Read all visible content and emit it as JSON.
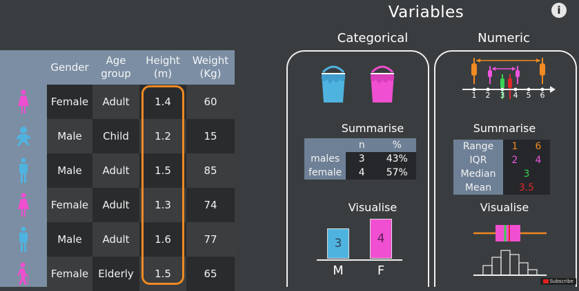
{
  "title": "Variables",
  "table": {
    "headers": {
      "gender": "Gender",
      "age_group_line1": "Age",
      "age_group_line2": "group",
      "height_line1": "Height",
      "height_line2": "(m)",
      "weight_line1": "Weight",
      "weight_line2": "(Kg)"
    },
    "rows": [
      {
        "icon": "female-person-icon",
        "gender": "Female",
        "age_group": "Adult",
        "height": "1.4",
        "weight": "60"
      },
      {
        "icon": "baby-icon",
        "gender": "Male",
        "age_group": "Child",
        "height": "1.2",
        "weight": "15"
      },
      {
        "icon": "male-person-icon",
        "gender": "Male",
        "age_group": "Adult",
        "height": "1.5",
        "weight": "85"
      },
      {
        "icon": "female-person-icon",
        "gender": "Female",
        "age_group": "Adult",
        "height": "1.3",
        "weight": "74"
      },
      {
        "icon": "male-person-icon",
        "gender": "Male",
        "age_group": "Adult",
        "height": "1.6",
        "weight": "77"
      },
      {
        "icon": "elderly-person-icon",
        "gender": "Female",
        "age_group": "Elderly",
        "height": "1.5",
        "weight": "65"
      }
    ]
  },
  "categorical": {
    "title": "Categorical",
    "summarise_label": "Summarise",
    "summary_table": {
      "headers": [
        "",
        "n",
        "%"
      ],
      "rows": [
        {
          "label": "males",
          "n": "3",
          "pct": "43%"
        },
        {
          "label": "female",
          "n": "4",
          "pct": "57%"
        }
      ]
    },
    "visualise_label": "Visualise",
    "bars": [
      {
        "label": "M",
        "value": "3",
        "color": "#4fb3e0"
      },
      {
        "label": "F",
        "value": "4",
        "color": "#ef4fd0"
      }
    ]
  },
  "numeric": {
    "title": "Numeric",
    "number_line_ticks": [
      "1",
      "2",
      "3",
      "4",
      "5",
      "6"
    ],
    "summarise_label": "Summarise",
    "summary_table": [
      {
        "label": "Range",
        "values": [
          "1",
          "6"
        ],
        "colors": [
          "#f08a23",
          "#f08a23"
        ]
      },
      {
        "label": "IQR",
        "values": [
          "2",
          "4"
        ],
        "colors": [
          "#ee55dd",
          "#ee55dd"
        ]
      },
      {
        "label": "Median",
        "values": [
          "3"
        ],
        "colors": [
          "#39d353"
        ]
      },
      {
        "label": "Mean",
        "values": [
          "3.5"
        ],
        "colors": [
          "#e0282a"
        ]
      }
    ],
    "visualise_label": "Visualise"
  },
  "colors": {
    "accent_orange": "#f08a23",
    "pink": "#ef4fd0",
    "blue": "#4fb3e0",
    "green": "#39d353",
    "red": "#e0282a"
  },
  "badge": {
    "subscribe": "Subscribe"
  }
}
